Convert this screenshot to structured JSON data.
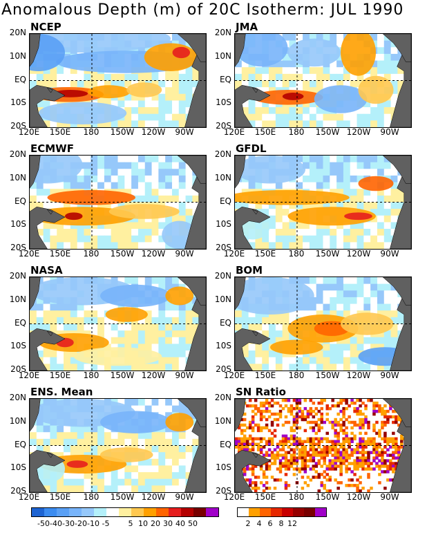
{
  "title": "Anomalous Depth (m) of 20C Isotherm: JUL 1990",
  "lat_labels": [
    "20N",
    "10N",
    "EQ",
    "10S",
    "20S"
  ],
  "lon_labels": [
    "120E",
    "150E",
    "180",
    "150W",
    "120W",
    "90W"
  ],
  "panels": [
    {
      "name": "NCEP",
      "kind": "anom"
    },
    {
      "name": "JMA",
      "kind": "anom"
    },
    {
      "name": "ECMWF",
      "kind": "anom"
    },
    {
      "name": "GFDL",
      "kind": "anom"
    },
    {
      "name": "NASA",
      "kind": "anom"
    },
    {
      "name": "BOM",
      "kind": "anom"
    },
    {
      "name": "ENS. Mean",
      "kind": "anom"
    },
    {
      "name": "SN Ratio",
      "kind": "sn"
    }
  ],
  "anom_colorbar": {
    "colors": [
      "#1e64d2",
      "#3c8cf0",
      "#5aa0f5",
      "#78b4fa",
      "#96c8fa",
      "#b4f0fa",
      "#ffffff",
      "#fff0a0",
      "#ffc850",
      "#ffa000",
      "#ff6400",
      "#e61e1e",
      "#b40000",
      "#780000",
      "#a000c8"
    ],
    "labels": [
      "-50",
      "-40",
      "-30",
      "-20",
      "-10",
      "-5",
      "5",
      "10",
      "20",
      "30",
      "40",
      "50"
    ]
  },
  "sn_colorbar": {
    "colors": [
      "#ffffff",
      "#ffa000",
      "#ff6400",
      "#e62800",
      "#c80000",
      "#960000",
      "#780000",
      "#a000c8"
    ],
    "labels": [
      "2",
      "4",
      "6",
      "8",
      "12"
    ]
  },
  "land_color": "#606060",
  "grid_style": "dashed lines at 180 and EQ"
}
